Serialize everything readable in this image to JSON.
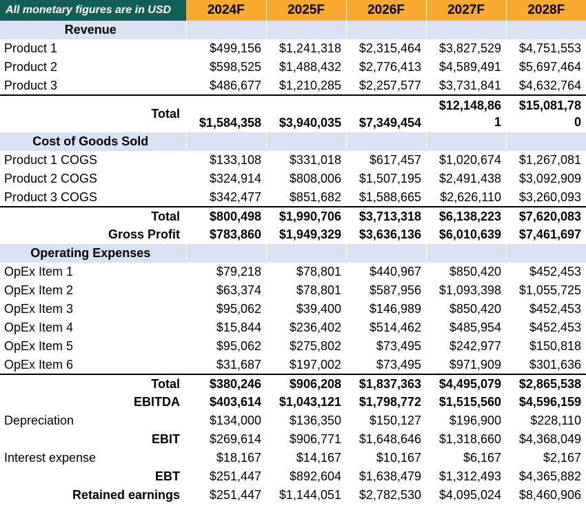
{
  "note": "All monetary figures are in USD",
  "columns": [
    "2024F",
    "2025F",
    "2026F",
    "2027F",
    "2028F"
  ],
  "colors": {
    "header_teal": "#145F55",
    "header_orange": "#F8A92F",
    "section_band": "#D9E1F2",
    "text": "#000000"
  },
  "rows": [
    {
      "style": "section",
      "label": "Revenue"
    },
    {
      "style": "item",
      "label": "Product 1",
      "values": [
        "$499,156",
        "$1,241,318",
        "$2,315,464",
        "$3,827,529",
        "$4,751,553"
      ]
    },
    {
      "style": "item",
      "label": "Product 2",
      "values": [
        "$598,525",
        "$1,488,432",
        "$2,776,413",
        "$4,589,491",
        "$5,697,464"
      ]
    },
    {
      "style": "item",
      "label": "Product 3",
      "values": [
        "$486,677",
        "$1,210,285",
        "$2,257,577",
        "$3,731,841",
        "$4,632,764"
      ]
    },
    {
      "style": "total",
      "label": "Total",
      "top_border": true,
      "tall": true,
      "wrap": [
        3,
        4
      ],
      "values": [
        "$1,584,358",
        "$3,940,035",
        "$7,349,454",
        "$12,148,861",
        "$15,081,780"
      ]
    },
    {
      "style": "section",
      "label": "Cost of Goods Sold"
    },
    {
      "style": "item",
      "label": "Product 1 COGS",
      "values": [
        "$133,108",
        "$331,018",
        "$617,457",
        "$1,020,674",
        "$1,267,081"
      ]
    },
    {
      "style": "item",
      "label": "Product 2 COGS",
      "values": [
        "$324,914",
        "$808,006",
        "$1,507,195",
        "$2,491,438",
        "$3,092,909"
      ]
    },
    {
      "style": "item",
      "label": "Product 3 COGS",
      "values": [
        "$342,477",
        "$851,682",
        "$1,588,665",
        "$2,626,110",
        "$3,260,093"
      ]
    },
    {
      "style": "total",
      "label": "Total",
      "top_border": true,
      "values": [
        "$800,498",
        "$1,990,706",
        "$3,713,318",
        "$6,138,223",
        "$7,620,083"
      ]
    },
    {
      "style": "total",
      "label": "Gross Profit",
      "values": [
        "$783,860",
        "$1,949,329",
        "$3,636,136",
        "$6,010,639",
        "$7,461,697"
      ]
    },
    {
      "style": "section",
      "label": "Operating Expenses"
    },
    {
      "style": "item",
      "label": "OpEx Item 1",
      "values": [
        "$79,218",
        "$78,801",
        "$440,967",
        "$850,420",
        "$452,453"
      ]
    },
    {
      "style": "item",
      "label": "OpEx Item 2",
      "values": [
        "$63,374",
        "$78,801",
        "$587,956",
        "$1,093,398",
        "$1,055,725"
      ]
    },
    {
      "style": "item",
      "label": "OpEx Item 3",
      "values": [
        "$95,062",
        "$39,400",
        "$146,989",
        "$850,420",
        "$452,453"
      ]
    },
    {
      "style": "item",
      "label": "OpEx Item 4",
      "values": [
        "$15,844",
        "$236,402",
        "$514,462",
        "$485,954",
        "$452,453"
      ]
    },
    {
      "style": "item",
      "label": "OpEx Item 5",
      "values": [
        "$95,062",
        "$275,802",
        "$73,495",
        "$242,977",
        "$150,818"
      ]
    },
    {
      "style": "item",
      "label": "OpEx Item 6",
      "values": [
        "$31,687",
        "$197,002",
        "$73,495",
        "$971,909",
        "$301,636"
      ]
    },
    {
      "style": "total",
      "label": "Total",
      "top_border": true,
      "values": [
        "$380,246",
        "$906,208",
        "$1,837,363",
        "$4,495,079",
        "$2,865,538"
      ]
    },
    {
      "style": "total",
      "label": "EBITDA",
      "values": [
        "$403,614",
        "$1,043,121",
        "$1,798,772",
        "$1,515,560",
        "$4,596,159"
      ]
    },
    {
      "style": "item",
      "label": "Depreciation",
      "values": [
        "$134,000",
        "$136,350",
        "$150,127",
        "$196,900",
        "$228,110"
      ]
    },
    {
      "style": "result",
      "label": "EBIT",
      "values": [
        "$269,614",
        "$906,771",
        "$1,648,646",
        "$1,318,660",
        "$4,368,049"
      ]
    },
    {
      "style": "item",
      "label": "Interest expense",
      "values": [
        "$18,167",
        "$14,167",
        "$10,167",
        "$6,167",
        "$2,167"
      ]
    },
    {
      "style": "result",
      "label": "EBT",
      "values": [
        "$251,447",
        "$892,604",
        "$1,638,479",
        "$1,312,493",
        "$4,365,882"
      ]
    },
    {
      "style": "result",
      "label": "Retained earnings",
      "values": [
        "$251,447",
        "$1,144,051",
        "$2,782,530",
        "$4,095,024",
        "$8,460,906"
      ]
    }
  ]
}
